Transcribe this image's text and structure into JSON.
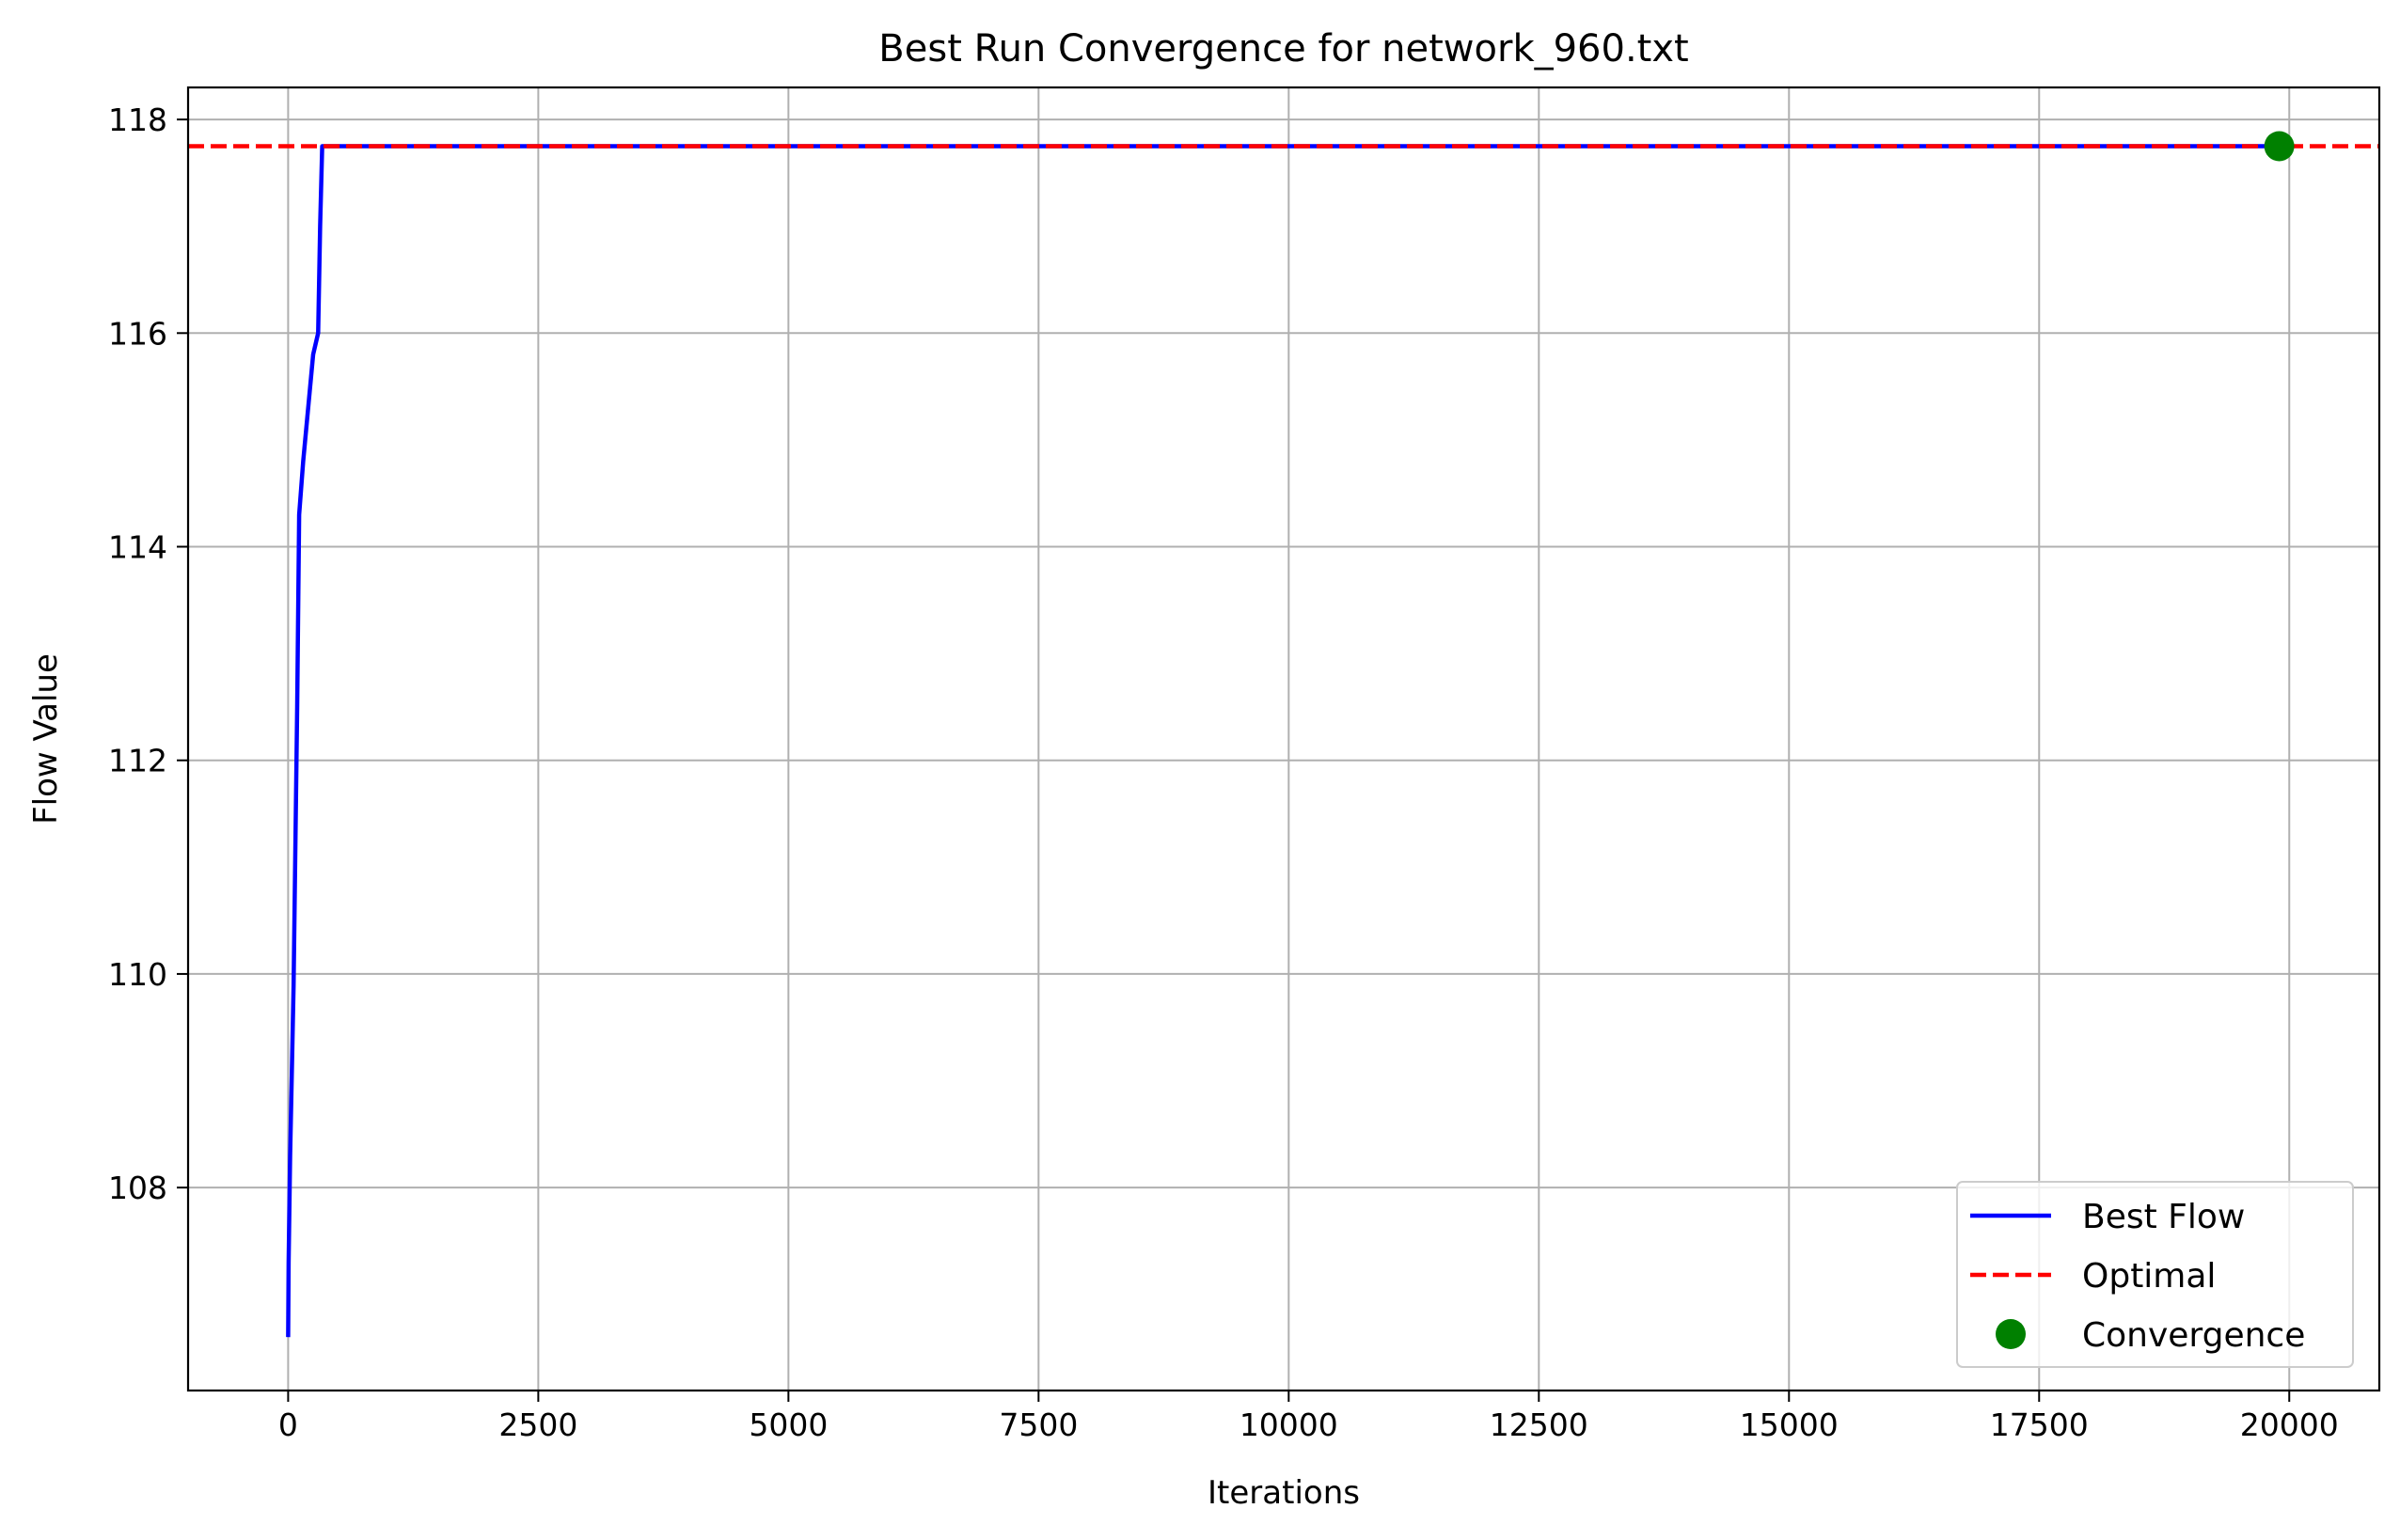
{
  "chart_data": {
    "type": "line",
    "title": "Best Run Convergence for network_960.txt",
    "xlabel": "Iterations",
    "ylabel": "Flow Value",
    "xlim": [
      -1000,
      20900
    ],
    "ylim": [
      106.1,
      118.3
    ],
    "xticks": [
      0,
      2500,
      5000,
      7500,
      10000,
      12500,
      15000,
      17500,
      20000
    ],
    "xtick_labels": [
      "0",
      "2500",
      "5000",
      "7500",
      "10000",
      "12500",
      "15000",
      "17500",
      "20000"
    ],
    "yticks": [
      108,
      110,
      112,
      114,
      116,
      118
    ],
    "ytick_labels": [
      "108",
      "110",
      "112",
      "114",
      "116",
      "118"
    ],
    "grid": true,
    "legend_position": "bottom-right",
    "series": [
      {
        "name": "Best Flow",
        "style": "solid",
        "color": "#0000ff",
        "x": [
          0,
          5,
          20,
          40,
          55,
          70,
          90,
          110,
          150,
          200,
          250,
          300,
          320,
          340,
          360,
          20000
        ],
        "y": [
          106.6,
          107.3,
          108.3,
          109.2,
          109.9,
          111.0,
          112.5,
          114.3,
          114.8,
          115.3,
          115.8,
          116.0,
          117.0,
          117.75,
          117.75,
          117.75
        ]
      },
      {
        "name": "Optimal",
        "style": "dashed",
        "color": "#ff0000",
        "y_constant": 117.75
      },
      {
        "name": "Convergence",
        "style": "marker",
        "color": "#008000",
        "x": [
          19900
        ],
        "y": [
          117.75
        ]
      }
    ]
  }
}
